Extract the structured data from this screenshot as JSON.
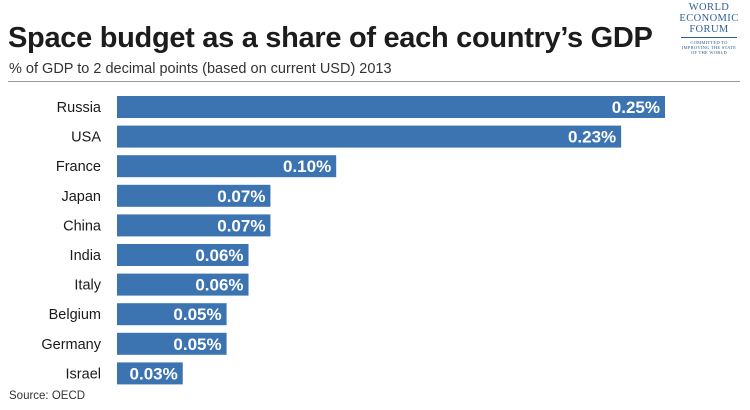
{
  "title": "Space budget as a share of each country’s GDP",
  "subtitle": "% of GDP to 2 decimal points (based on current USD) 2013",
  "source": "Source: OECD",
  "logo": {
    "lines": [
      "WORLD",
      "ECONOMIC",
      "FORUM"
    ],
    "tagline": [
      "COMMITTED TO",
      "IMPROVING THE STATE",
      "OF THE WORLD"
    ]
  },
  "colors": {
    "bar": "#3c74b2",
    "bar_label": "#ffffff",
    "text": "#1a1a1a",
    "brand": "#2f5f94"
  },
  "chart_data": {
    "type": "bar",
    "orientation": "horizontal",
    "title": "Space budget as a share of each country’s GDP",
    "subtitle": "% of GDP to 2 decimal points (based on current USD) 2013",
    "categories": [
      "Russia",
      "USA",
      "France",
      "Japan",
      "China",
      "India",
      "Italy",
      "Belgium",
      "Germany",
      "Israel"
    ],
    "values": [
      0.25,
      0.23,
      0.1,
      0.07,
      0.07,
      0.06,
      0.06,
      0.05,
      0.05,
      0.03
    ],
    "value_labels": [
      "0.25%",
      "0.23%",
      "0.10%",
      "0.07%",
      "0.07%",
      "0.06%",
      "0.06%",
      "0.05%",
      "0.05%",
      "0.03%"
    ],
    "xlim": [
      0,
      0.25
    ],
    "grid": false,
    "legend": "none"
  }
}
